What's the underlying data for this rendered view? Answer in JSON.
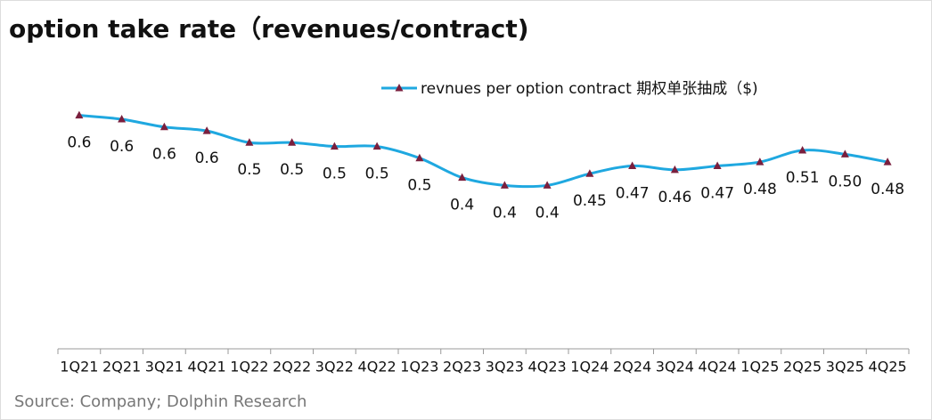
{
  "chart_data": {
    "type": "line",
    "title": "option take rate（revenues/contract)",
    "source": "Source: Company; Dolphin Research",
    "categories": [
      "1Q21",
      "2Q21",
      "3Q21",
      "4Q21",
      "1Q22",
      "2Q22",
      "3Q22",
      "4Q22",
      "1Q23",
      "2Q23",
      "3Q23",
      "4Q23",
      "1Q24",
      "2Q24",
      "3Q24",
      "4Q24",
      "1Q25",
      "2Q25",
      "3Q25",
      "4Q25"
    ],
    "series": [
      {
        "name": "revnues per option contract 期权单张抽成（$)",
        "color": "#1fa8e0",
        "marker_color": "#7a1f3d",
        "values": [
          0.6,
          0.59,
          0.57,
          0.56,
          0.53,
          0.53,
          0.52,
          0.52,
          0.49,
          0.44,
          0.42,
          0.42,
          0.45,
          0.47,
          0.46,
          0.47,
          0.48,
          0.51,
          0.5,
          0.48
        ],
        "value_labels": [
          "0.6",
          "0.6",
          "0.6",
          "0.6",
          "0.5",
          "0.5",
          "0.5",
          "0.5",
          "0.5",
          "0.4",
          "0.4",
          "0.4",
          "0.45",
          "0.47",
          "0.46",
          "0.47",
          "0.48",
          "0.51",
          "0.50",
          "0.48"
        ]
      }
    ],
    "ylim": [
      0,
      0.75
    ]
  }
}
